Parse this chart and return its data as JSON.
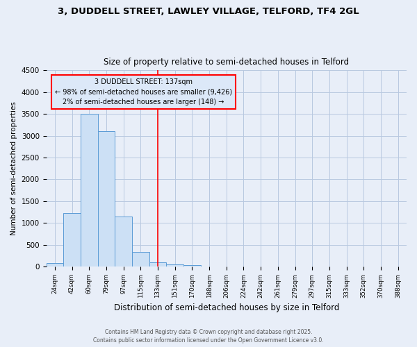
{
  "title_line1": "3, DUDDELL STREET, LAWLEY VILLAGE, TELFORD, TF4 2GL",
  "title_line2": "Size of property relative to semi-detached houses in Telford",
  "xlabel": "Distribution of semi-detached houses by size in Telford",
  "ylabel": "Number of semi-detached properties",
  "categories": [
    "24sqm",
    "42sqm",
    "60sqm",
    "79sqm",
    "97sqm",
    "115sqm",
    "133sqm",
    "151sqm",
    "170sqm",
    "188sqm",
    "206sqm",
    "224sqm",
    "242sqm",
    "261sqm",
    "279sqm",
    "297sqm",
    "315sqm",
    "333sqm",
    "352sqm",
    "370sqm",
    "388sqm"
  ],
  "values": [
    80,
    1220,
    3500,
    3100,
    1150,
    340,
    100,
    55,
    30,
    0,
    0,
    0,
    0,
    0,
    0,
    0,
    0,
    0,
    0,
    0,
    0
  ],
  "bar_color": "#cce0f5",
  "bar_edge_color": "#5b9bd5",
  "red_line_x": 6,
  "annotation_title": "3 DUDDELL STREET: 137sqm",
  "annotation_line2": "← 98% of semi-detached houses are smaller (9,426)",
  "annotation_line3": "2% of semi-detached houses are larger (148) →",
  "ylim": [
    0,
    4500
  ],
  "yticks": [
    0,
    500,
    1000,
    1500,
    2000,
    2500,
    3000,
    3500,
    4000,
    4500
  ],
  "footer_line1": "Contains HM Land Registry data © Crown copyright and database right 2025.",
  "footer_line2": "Contains public sector information licensed under the Open Government Licence v3.0.",
  "bg_color": "#e8eef8",
  "grid_color": "#b8c8e0",
  "ann_box_facecolor": "#dce8f8"
}
